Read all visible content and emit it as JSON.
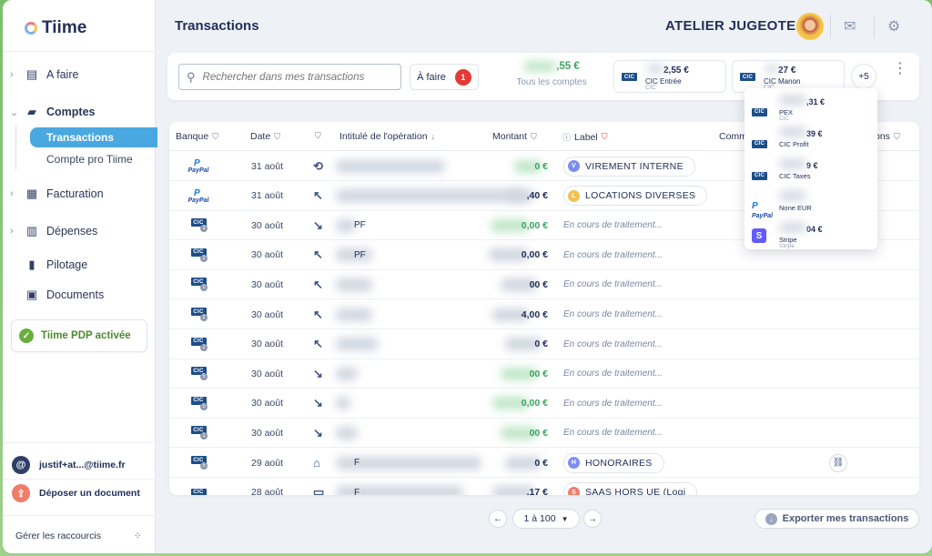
{
  "app": {
    "name": "Tiime"
  },
  "sidebar": {
    "items": [
      {
        "label": "A faire",
        "icon": "clipboard-icon"
      },
      {
        "label": "Comptes",
        "icon": "cards-icon"
      },
      {
        "label": "Facturation",
        "icon": "invoice-icon"
      },
      {
        "label": "Dépenses",
        "icon": "receipt-icon"
      },
      {
        "label": "Pilotage",
        "icon": "bar-chart-icon"
      },
      {
        "label": "Documents",
        "icon": "folder-upload-icon"
      }
    ],
    "sub_items": [
      {
        "label": "Transactions",
        "active": true
      },
      {
        "label": "Compte pro Tiime",
        "active": false
      }
    ],
    "pdp_label": "Tiime PDP activée",
    "email": "justif+at...@tiime.fr",
    "upload_label": "Déposer un document",
    "shortcuts_label": "Gérer les raccourcis"
  },
  "header": {
    "title": "Transactions",
    "company": "ATELIER JUGEOTE"
  },
  "filters": {
    "search_placeholder": "Rechercher dans mes transactions",
    "todo_label": "À faire",
    "todo_count": "1",
    "total_amount": ",55 €",
    "total_label": "Tous les comptes",
    "accounts": [
      {
        "amount": "2,55 €",
        "name": "CIC Entrée",
        "bank": "CIC",
        "sub": "1"
      },
      {
        "amount": "27 €",
        "name": "CIC Manon",
        "bank": "CIC",
        "sub": "2"
      }
    ],
    "more_accounts": "+5"
  },
  "dropdown": [
    {
      "amount": ",31 €",
      "name": "PEX",
      "bank": "CIC",
      "logo": "cic",
      "sub": "3"
    },
    {
      "amount": "39 €",
      "name": "CIC Profit",
      "bank": "",
      "logo": "cic",
      "sub": "4"
    },
    {
      "amount": "9 €",
      "name": "CIC Taxes",
      "bank": "",
      "logo": "cic",
      "sub": "5"
    },
    {
      "amount": "",
      "name": "None EUR",
      "bank": "",
      "logo": "paypal",
      "sub": ""
    },
    {
      "amount": "04 €",
      "name": "Stripe",
      "bank": "Stripe",
      "logo": "stripe",
      "sub": ""
    }
  ],
  "table": {
    "headers": {
      "bank": "Banque",
      "date": "Date",
      "label_op": "Intitulé de l'opération",
      "amount": "Montant",
      "label": "Label",
      "comments": "Comm",
      "actions": "ons"
    },
    "rows": [
      {
        "bank": "paypal",
        "sub": "",
        "date": "31 août",
        "dir": "link",
        "desc": "",
        "amount": "0 €",
        "amount_color": "green",
        "label": "VIREMENT INTERNE",
        "label_letter": "V",
        "label_color": "#7c8ef0",
        "status": ""
      },
      {
        "bank": "paypal",
        "sub": "",
        "date": "31 août",
        "dir": "out",
        "desc": "",
        "amount": ",40 €",
        "amount_color": "dark",
        "label": "LOCATIONS DIVERSES",
        "label_letter": "L",
        "label_color": "#f2c14e",
        "status": ""
      },
      {
        "bank": "cic",
        "sub": "3",
        "date": "30 août",
        "dir": "in",
        "desc": "PF",
        "amount": "0,00 €",
        "amount_color": "green",
        "label": "",
        "label_letter": "",
        "label_color": "",
        "status": "En cours de traitement..."
      },
      {
        "bank": "cic",
        "sub": "2",
        "date": "30 août",
        "dir": "out",
        "desc": "PF",
        "amount": "0,00 €",
        "amount_color": "dark",
        "label": "",
        "label_letter": "",
        "label_color": "",
        "status": "En cours de traitement..."
      },
      {
        "bank": "cic",
        "sub": "2",
        "date": "30 août",
        "dir": "out",
        "desc": "",
        "amount": "00 €",
        "amount_color": "dark",
        "label": "",
        "label_letter": "",
        "label_color": "",
        "status": "En cours de traitement..."
      },
      {
        "bank": "cic",
        "sub": "2",
        "date": "30 août",
        "dir": "out",
        "desc": "",
        "amount": "4,00 €",
        "amount_color": "dark",
        "label": "",
        "label_letter": "",
        "label_color": "",
        "status": "En cours de traitement..."
      },
      {
        "bank": "cic",
        "sub": "2",
        "date": "30 août",
        "dir": "out",
        "desc": "",
        "amount": "0 €",
        "amount_color": "dark",
        "label": "",
        "label_letter": "",
        "label_color": "",
        "status": "En cours de traitement..."
      },
      {
        "bank": "cic",
        "sub": "5",
        "date": "30 août",
        "dir": "in",
        "desc": "",
        "amount": "00 €",
        "amount_color": "green",
        "label": "",
        "label_letter": "",
        "label_color": "",
        "status": "En cours de traitement..."
      },
      {
        "bank": "cic",
        "sub": "5",
        "date": "30 août",
        "dir": "in",
        "desc": "",
        "amount": "0,00 €",
        "amount_color": "green",
        "label": "",
        "label_letter": "",
        "label_color": "",
        "status": "En cours de traitement..."
      },
      {
        "bank": "cic",
        "sub": "1",
        "date": "30 août",
        "dir": "in",
        "desc": "",
        "amount": "00 €",
        "amount_color": "green",
        "label": "",
        "label_letter": "",
        "label_color": "",
        "status": "En cours de traitement..."
      },
      {
        "bank": "cic",
        "sub": "5",
        "date": "29 août",
        "dir": "bank",
        "desc": "F",
        "amount": "0 €",
        "amount_color": "dark",
        "label": "HONORAIRES",
        "label_letter": "H",
        "label_color": "#7c8ef0",
        "status": ""
      },
      {
        "bank": "cic",
        "sub": "",
        "date": "28 août",
        "dir": "card",
        "desc": "F",
        "amount": ",17 €",
        "amount_color": "dark",
        "label": "SAAS HORS UE (Logi",
        "label_letter": "S",
        "label_color": "#f07c6a",
        "status": ""
      }
    ]
  },
  "pagination": {
    "range": "1 à 100"
  },
  "export_label": "Exporter mes transactions",
  "colors": {
    "accent": "#4aa8e0",
    "green": "#3aa55d",
    "danger": "#e53935",
    "navy": "#22305a"
  }
}
